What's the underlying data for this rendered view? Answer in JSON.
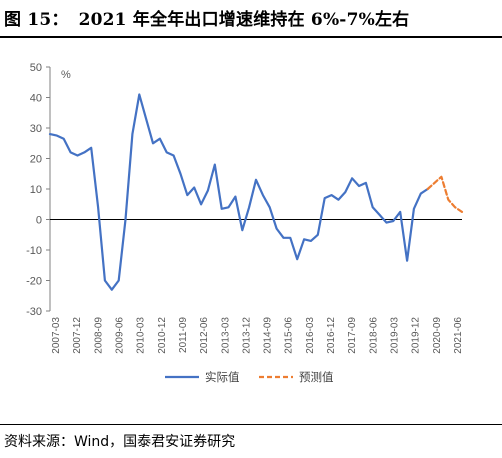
{
  "figure": {
    "label": "图 15：",
    "title": "2021 年全年出口增速维持在 6%-7%左右",
    "source": "资料来源：Wind，国泰君安证券研究"
  },
  "chart_data": {
    "type": "line",
    "unit": "%",
    "ylim": [
      -30,
      50
    ],
    "yticks": [
      -30,
      -20,
      -10,
      0,
      10,
      20,
      30,
      40,
      50
    ],
    "grid": false,
    "legend_position": "bottom",
    "x_tick_labels": [
      "2007-03",
      "2007-12",
      "2008-09",
      "2009-06",
      "2010-03",
      "2010-12",
      "2011-09",
      "2012-06",
      "2013-03",
      "2013-12",
      "2014-09",
      "2015-06",
      "2016-03",
      "2016-12",
      "2017-09",
      "2018-06",
      "2019-03",
      "2019-12",
      "2020-09",
      "2021-06"
    ],
    "x_range": [
      2007.0,
      2022.0
    ],
    "series": [
      {
        "name": "实际值",
        "color": "#4472C4",
        "style": "solid",
        "x": [
          2007.0,
          2007.25,
          2007.5,
          2007.75,
          2008.0,
          2008.25,
          2008.5,
          2008.75,
          2009.0,
          2009.25,
          2009.5,
          2009.75,
          2010.0,
          2010.25,
          2010.5,
          2010.75,
          2011.0,
          2011.25,
          2011.5,
          2011.75,
          2012.0,
          2012.25,
          2012.5,
          2012.75,
          2013.0,
          2013.25,
          2013.5,
          2013.75,
          2014.0,
          2014.25,
          2014.5,
          2014.75,
          2015.0,
          2015.25,
          2015.5,
          2015.75,
          2016.0,
          2016.25,
          2016.5,
          2016.75,
          2017.0,
          2017.25,
          2017.5,
          2017.75,
          2018.0,
          2018.25,
          2018.5,
          2018.75,
          2019.0,
          2019.25,
          2019.5,
          2019.75,
          2020.0,
          2020.25,
          2020.5,
          2020.75
        ],
        "values": [
          28,
          27.5,
          26.5,
          22,
          21,
          22,
          23.5,
          4,
          -20,
          -23,
          -20,
          0,
          28,
          41,
          33,
          25,
          26.5,
          22,
          21,
          15,
          8,
          10.5,
          5,
          9.5,
          18,
          3.5,
          4,
          7.5,
          -3.5,
          4,
          13,
          8,
          4,
          -3,
          -6,
          -6,
          -13,
          -6.5,
          -7,
          -5,
          7,
          8,
          6.5,
          9,
          13.5,
          11,
          12,
          4,
          1.5,
          -1,
          -0.5,
          2.5,
          -13.5,
          3.5,
          8.5,
          10
        ]
      },
      {
        "name": "预测值",
        "color": "#ED7D31",
        "style": "dashed",
        "x": [
          2020.75,
          2021.0,
          2021.25,
          2021.5,
          2021.75,
          2022.0
        ],
        "values": [
          10,
          12,
          14,
          6.5,
          4,
          2.5
        ]
      }
    ]
  }
}
